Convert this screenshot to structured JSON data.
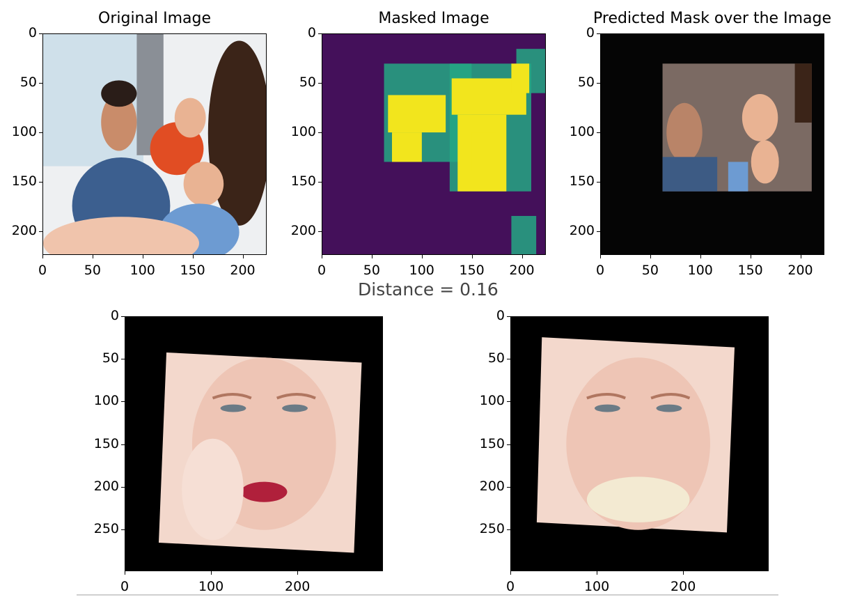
{
  "chart_data": [
    {
      "type": "image",
      "title": "Original Image",
      "xticks": [
        "0",
        "50",
        "100",
        "150",
        "200"
      ],
      "yticks": [
        "0",
        "50",
        "100",
        "150",
        "200"
      ],
      "xlim": [
        0,
        224
      ],
      "ylim": [
        224,
        0
      ],
      "content": "photo"
    },
    {
      "type": "heatmap",
      "title": "Masked Image",
      "xticks": [
        "0",
        "50",
        "100",
        "150",
        "200"
      ],
      "yticks": [
        "0",
        "50",
        "100",
        "150",
        "200"
      ],
      "xlim": [
        0,
        224
      ],
      "ylim": [
        224,
        0
      ],
      "colormap": "viridis",
      "background_color": "#44105a",
      "highlight_color": "#f2e51d",
      "mid_color": "#25a784"
    },
    {
      "type": "image",
      "title": "Predicted Mask over the Image",
      "xticks": [
        "0",
        "50",
        "100",
        "150",
        "200"
      ],
      "yticks": [
        "0",
        "50",
        "100",
        "150",
        "200"
      ],
      "xlim": [
        0,
        224
      ],
      "ylim": [
        224,
        0
      ],
      "content": "masked photo"
    },
    {
      "type": "image",
      "title": "",
      "xticks": [
        "0",
        "100",
        "200"
      ],
      "yticks": [
        "0",
        "50",
        "100",
        "150",
        "200",
        "250"
      ],
      "xlim": [
        0,
        299
      ],
      "ylim": [
        299,
        0
      ],
      "content": "rotated face photo"
    },
    {
      "type": "image",
      "title": "",
      "xticks": [
        "0",
        "100",
        "200"
      ],
      "yticks": [
        "0",
        "50",
        "100",
        "150",
        "200",
        "250"
      ],
      "xlim": [
        0,
        299
      ],
      "ylim": [
        299,
        0
      ],
      "content": "rotated face photo"
    }
  ],
  "distance_text": "Distance = 0.16"
}
